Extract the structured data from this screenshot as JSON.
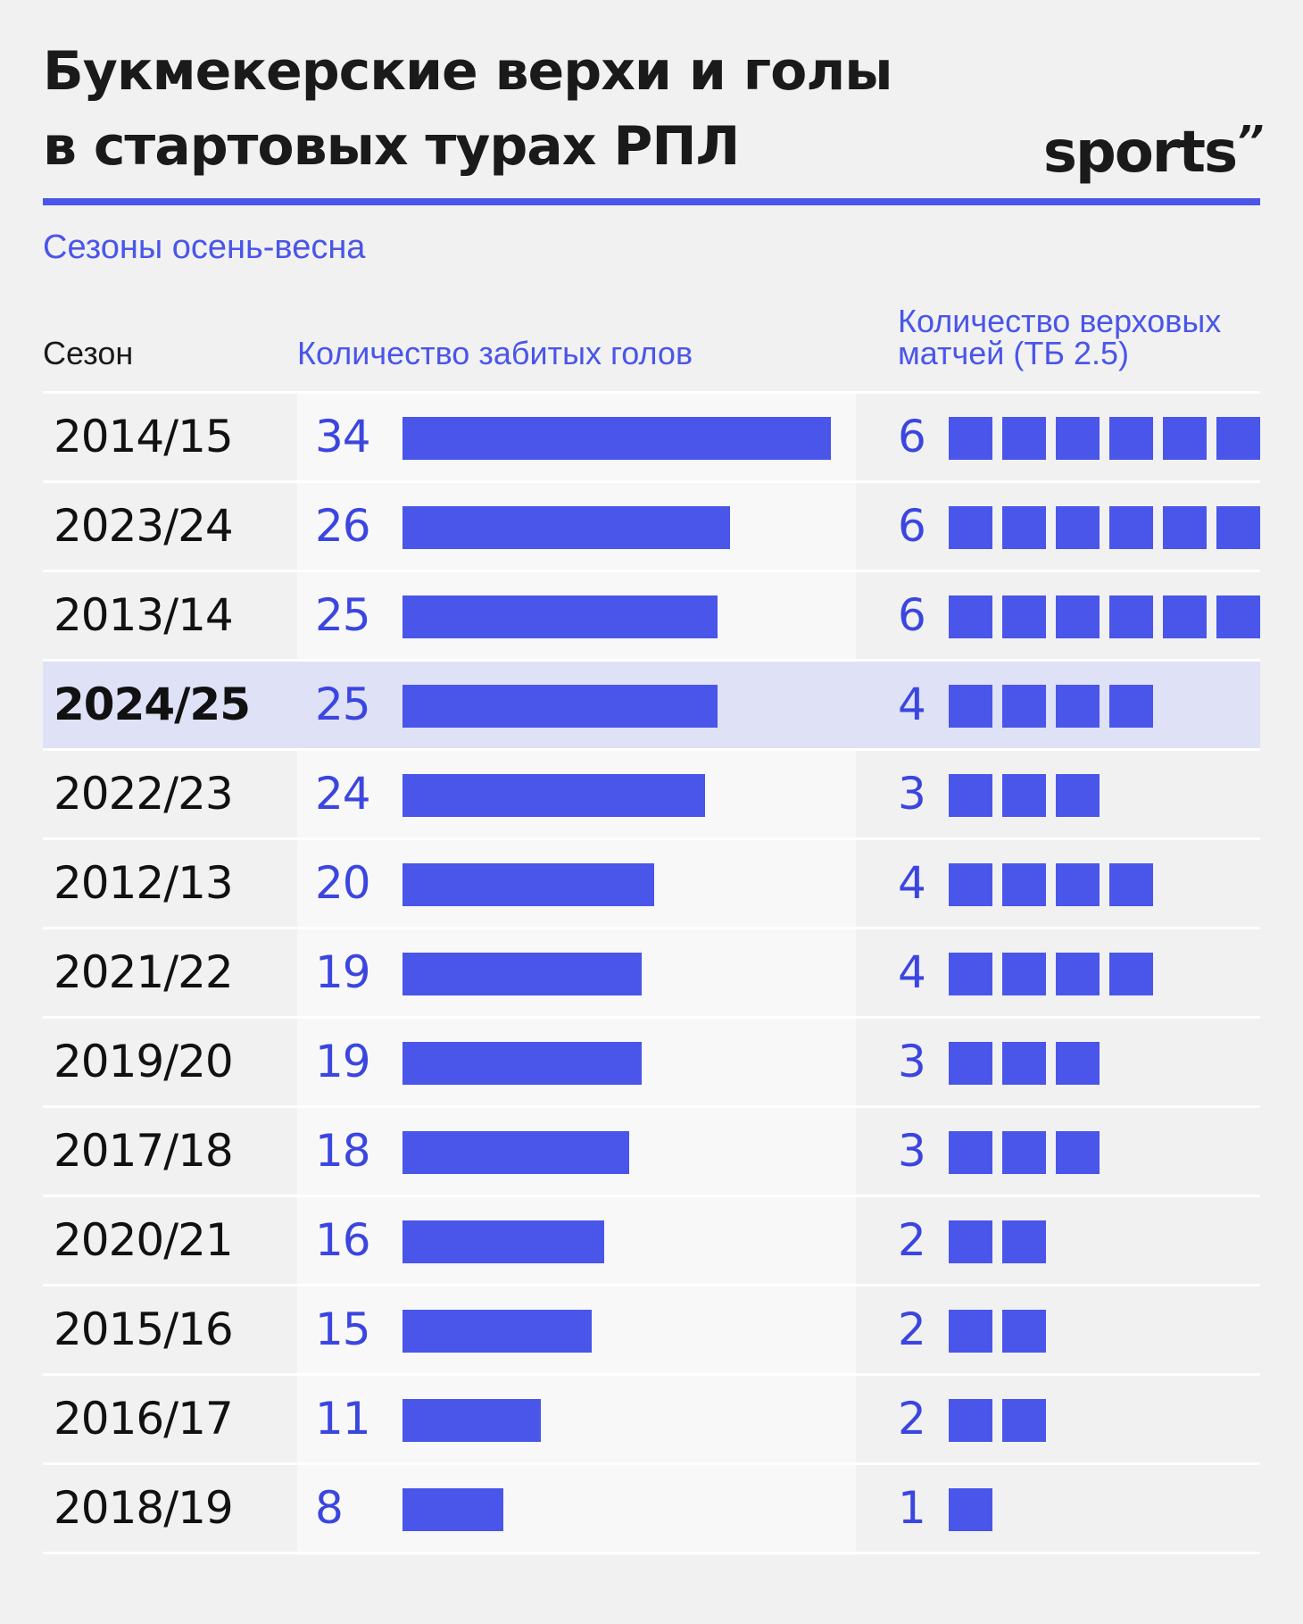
{
  "header": {
    "title_line1": "Букмекерские верхи и голы",
    "title_line2": "в стартовых турах РПЛ",
    "logo": "sports",
    "logo_mark": "’’",
    "subtitle": "Сезоны осень-весна"
  },
  "columns": {
    "season": "Сезон",
    "goals": "Количество забитых голов",
    "overs_line1": "Количество верховых",
    "overs_line2": "матчей (ТБ 2.5)"
  },
  "colors": {
    "accent": "#4a55ea",
    "highlight": "#dfe1f7"
  },
  "chart_data": {
    "type": "bar",
    "categories": [
      "2014/15",
      "2023/24",
      "2013/14",
      "2024/25",
      "2022/23",
      "2012/13",
      "2021/22",
      "2019/20",
      "2017/18",
      "2020/21",
      "2015/16",
      "2016/17",
      "2018/19"
    ],
    "series": [
      {
        "name": "Количество забитых голов",
        "values": [
          34,
          26,
          25,
          25,
          24,
          20,
          19,
          19,
          18,
          16,
          15,
          11,
          8
        ]
      },
      {
        "name": "Количество верховых матчей (ТБ 2.5)",
        "values": [
          6,
          6,
          6,
          4,
          3,
          4,
          4,
          3,
          3,
          2,
          2,
          2,
          1
        ]
      }
    ],
    "highlighted_category": "2024/25",
    "xlim": [
      0,
      34
    ]
  }
}
